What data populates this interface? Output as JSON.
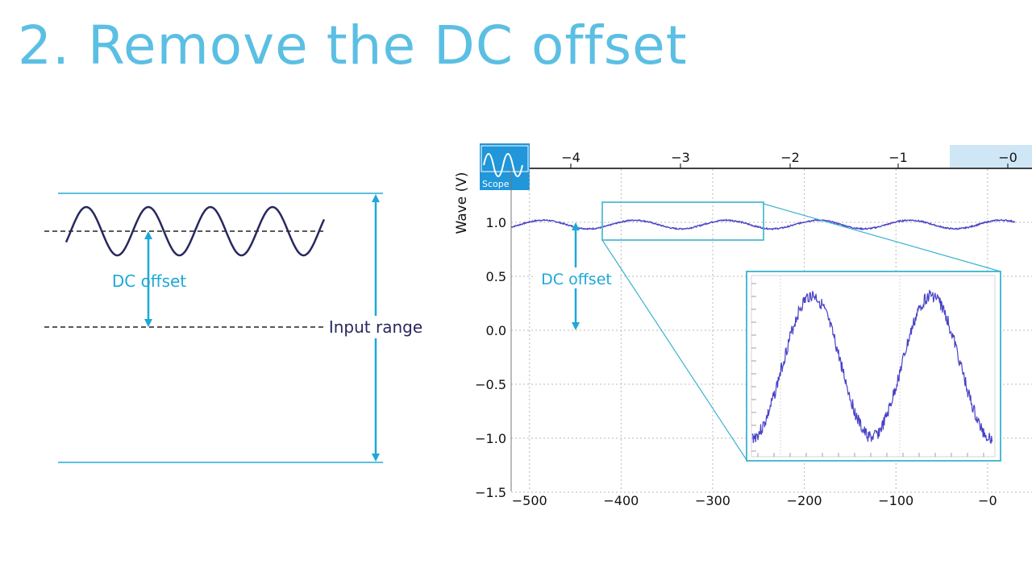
{
  "slide": {
    "title": "2. Remove the DC offset"
  },
  "schematic": {
    "dc_offset_label": "DC offset",
    "input_range_label": "Input range"
  },
  "scope": {
    "badge_label": "Scope",
    "dc_offset_label": "DC offset",
    "y_axis_label": "Wave (V)",
    "top_axis_ticks": [
      "−4",
      "−3",
      "−2",
      "−1",
      "−0"
    ],
    "y_ticks": [
      "1.0",
      "0.5",
      "0.0",
      "−0.5",
      "−1.0",
      "−1.5"
    ],
    "x_ticks": [
      "−500",
      "−400",
      "−300",
      "−200",
      "−100",
      "−0"
    ]
  },
  "colors": {
    "accent": "#5bbfe3",
    "arrow": "#1ea8d8",
    "wave": "#28285e",
    "signal": "#4a44c6"
  },
  "chart_data": {
    "type": "line",
    "xlabel": "",
    "ylabel": "Wave (V)",
    "xlim": [
      -520,
      30
    ],
    "ylim": [
      -1.5,
      1.2
    ],
    "x_ticks": [
      -500,
      -400,
      -300,
      -200,
      -100,
      0
    ],
    "y_ticks": [
      -1.5,
      -1.0,
      -0.5,
      0.0,
      0.5,
      1.0
    ],
    "series": [
      {
        "offset": 0.98,
        "amplitude": 0.04,
        "period": 100
      }
    ]
  }
}
